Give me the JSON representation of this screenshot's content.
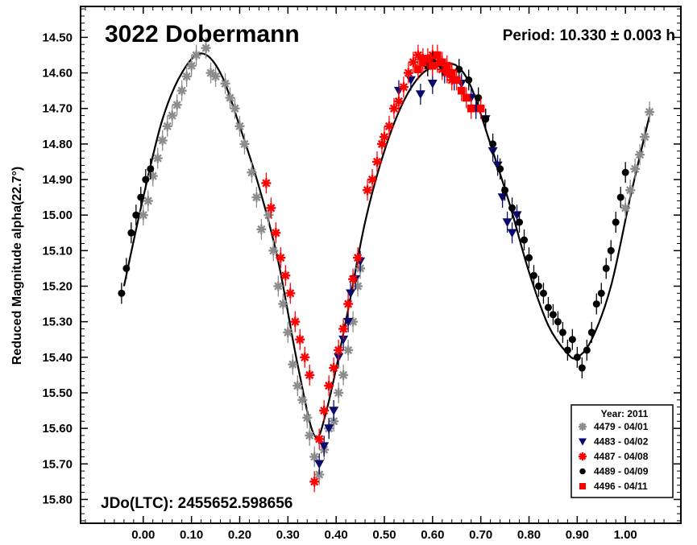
{
  "chart_data": {
    "type": "scatter",
    "title": "3022 Dobermann",
    "period_text": "Period: 10.330 ± 0.003 h",
    "jdo_text": "JDo(LTC): 2455652.598656",
    "ylabel": "Reduced Magnitude alpha(22.7°)",
    "xlabel": "",
    "xlim": [
      -0.13,
      1.115
    ],
    "ylim": [
      15.867,
      14.413
    ],
    "y_inverted": true,
    "xticks": [
      "0.00",
      "0.10",
      "0.20",
      "0.30",
      "0.40",
      "0.50",
      "0.60",
      "0.70",
      "0.80",
      "0.90",
      "1.00"
    ],
    "yticks": [
      "14.50",
      "14.60",
      "14.70",
      "14.80",
      "14.90",
      "15.00",
      "15.10",
      "15.20",
      "15.30",
      "15.40",
      "15.50",
      "15.60",
      "15.70",
      "15.80"
    ],
    "grid": false,
    "legend_position": "bottom-right",
    "legend_title": "Year: 2011",
    "colors": {
      "gray": "#8c8c8c",
      "navy": "#0a0a6e",
      "red": "#ff0000",
      "black": "#000000"
    },
    "fit_curve": {
      "x": [
        -0.04,
        0.0,
        0.04,
        0.08,
        0.12,
        0.16,
        0.2,
        0.24,
        0.28,
        0.32,
        0.355,
        0.38,
        0.42,
        0.46,
        0.5,
        0.54,
        0.58,
        0.62,
        0.65,
        0.68,
        0.72,
        0.76,
        0.8,
        0.84,
        0.88,
        0.9,
        0.93,
        0.97,
        1.01,
        1.05
      ],
      "y": [
        15.2,
        14.95,
        14.73,
        14.6,
        14.545,
        14.6,
        14.75,
        14.92,
        15.13,
        15.42,
        15.62,
        15.55,
        15.3,
        15.02,
        14.82,
        14.68,
        14.6,
        14.58,
        14.58,
        14.64,
        14.8,
        14.97,
        15.16,
        15.31,
        15.39,
        15.4,
        15.35,
        15.2,
        14.95,
        14.72
      ]
    },
    "series": [
      {
        "name": "4479 - 04/01",
        "marker": "asterisk",
        "color": "#8c8c8c",
        "x": [
          0.0,
          0.01,
          0.02,
          0.03,
          0.04,
          0.05,
          0.06,
          0.07,
          0.08,
          0.09,
          0.1,
          0.11,
          0.13,
          0.14,
          0.15,
          0.17,
          0.18,
          0.19,
          0.2,
          0.21,
          0.225,
          0.235,
          0.245,
          0.26,
          0.27,
          0.28,
          0.29,
          0.3,
          0.31,
          0.32,
          0.33,
          0.34,
          0.345,
          0.355,
          0.365,
          0.375,
          0.385,
          0.395,
          0.405,
          0.415,
          0.425,
          0.435,
          0.445,
          0.45,
          1.0,
          1.01,
          1.02,
          1.03,
          1.04,
          1.05
        ],
        "y": [
          15.0,
          14.96,
          14.89,
          14.84,
          14.79,
          14.75,
          14.72,
          14.69,
          14.65,
          14.61,
          14.58,
          14.55,
          14.53,
          14.6,
          14.61,
          14.63,
          14.67,
          14.7,
          14.75,
          14.8,
          14.88,
          14.95,
          15.04,
          15.0,
          15.1,
          15.2,
          15.25,
          15.33,
          15.42,
          15.48,
          15.52,
          15.57,
          15.62,
          15.68,
          15.73,
          15.66,
          15.6,
          15.58,
          15.5,
          15.45,
          15.38,
          15.3,
          15.2,
          15.15,
          14.98,
          14.93,
          14.87,
          14.83,
          14.78,
          14.71
        ]
      },
      {
        "name": "4483 - 04/02",
        "marker": "triangle-down",
        "color": "#0a0a6e",
        "x": [
          0.365,
          0.375,
          0.385,
          0.395,
          0.405,
          0.415,
          0.425,
          0.43,
          0.44,
          0.45,
          0.53,
          0.555,
          0.575,
          0.6,
          0.625,
          0.645,
          0.66,
          0.68,
          0.69,
          0.71,
          0.725,
          0.735,
          0.745,
          0.755,
          0.765,
          0.775
        ],
        "y": [
          15.7,
          15.65,
          15.6,
          15.55,
          15.4,
          15.35,
          15.3,
          15.22,
          15.18,
          15.13,
          14.65,
          14.62,
          14.66,
          14.63,
          14.6,
          14.62,
          14.63,
          14.67,
          14.7,
          14.73,
          14.82,
          14.86,
          14.95,
          15.02,
          15.05,
          15.0
        ]
      },
      {
        "name": "4487 - 04/08",
        "marker": "asterisk",
        "color": "#ff0000",
        "x": [
          0.255,
          0.265,
          0.275,
          0.285,
          0.295,
          0.305,
          0.315,
          0.325,
          0.335,
          0.345,
          0.355,
          0.365,
          0.375,
          0.385,
          0.395,
          0.405,
          0.415,
          0.425,
          0.435,
          0.445,
          0.465,
          0.475,
          0.485,
          0.495,
          0.5,
          0.51,
          0.52,
          0.53,
          0.54,
          0.55,
          0.56,
          0.57,
          0.58,
          0.59,
          0.6,
          0.61,
          0.62,
          0.63,
          0.64
        ],
        "y": [
          14.91,
          14.98,
          15.05,
          15.12,
          15.17,
          15.22,
          15.3,
          15.35,
          15.4,
          15.45,
          15.75,
          15.63,
          15.55,
          15.48,
          15.43,
          15.38,
          15.32,
          15.25,
          15.18,
          15.12,
          14.93,
          14.9,
          14.85,
          14.8,
          14.78,
          14.75,
          14.7,
          14.68,
          14.64,
          14.6,
          14.57,
          14.55,
          14.56,
          14.58,
          14.55,
          14.57,
          14.59,
          14.6,
          14.62
        ]
      },
      {
        "name": "4489 - 04/09",
        "marker": "circle",
        "color": "#000000",
        "x": [
          -0.045,
          -0.035,
          -0.025,
          -0.015,
          -0.005,
          0.005,
          0.015,
          0.59,
          0.6,
          0.62,
          0.64,
          0.655,
          0.675,
          0.695,
          0.71,
          0.725,
          0.74,
          0.75,
          0.765,
          0.78,
          0.79,
          0.8,
          0.81,
          0.82,
          0.83,
          0.84,
          0.85,
          0.86,
          0.87,
          0.88,
          0.89,
          0.9,
          0.91,
          0.92,
          0.93,
          0.94,
          0.95,
          0.96,
          0.97,
          0.98,
          0.99,
          1.0
        ],
        "y": [
          15.22,
          15.15,
          15.05,
          15.0,
          14.95,
          14.9,
          14.87,
          14.58,
          14.57,
          14.58,
          14.6,
          14.59,
          14.62,
          14.67,
          14.73,
          14.8,
          14.87,
          14.93,
          14.98,
          15.02,
          15.07,
          15.12,
          15.17,
          15.2,
          15.22,
          15.26,
          15.28,
          15.3,
          15.33,
          15.38,
          15.35,
          15.4,
          15.43,
          15.38,
          15.33,
          15.25,
          15.22,
          15.15,
          15.1,
          15.02,
          14.95,
          14.88
        ]
      },
      {
        "name": "4496 - 04/11",
        "marker": "square",
        "color": "#ff0000",
        "x": [
          0.57,
          0.58,
          0.59,
          0.6,
          0.61,
          0.62,
          0.63,
          0.64,
          0.65,
          0.66,
          0.67,
          0.68,
          0.7
        ],
        "y": [
          14.59,
          14.57,
          14.56,
          14.58,
          14.55,
          14.57,
          14.58,
          14.6,
          14.62,
          14.65,
          14.67,
          14.7,
          14.7
        ]
      }
    ]
  }
}
